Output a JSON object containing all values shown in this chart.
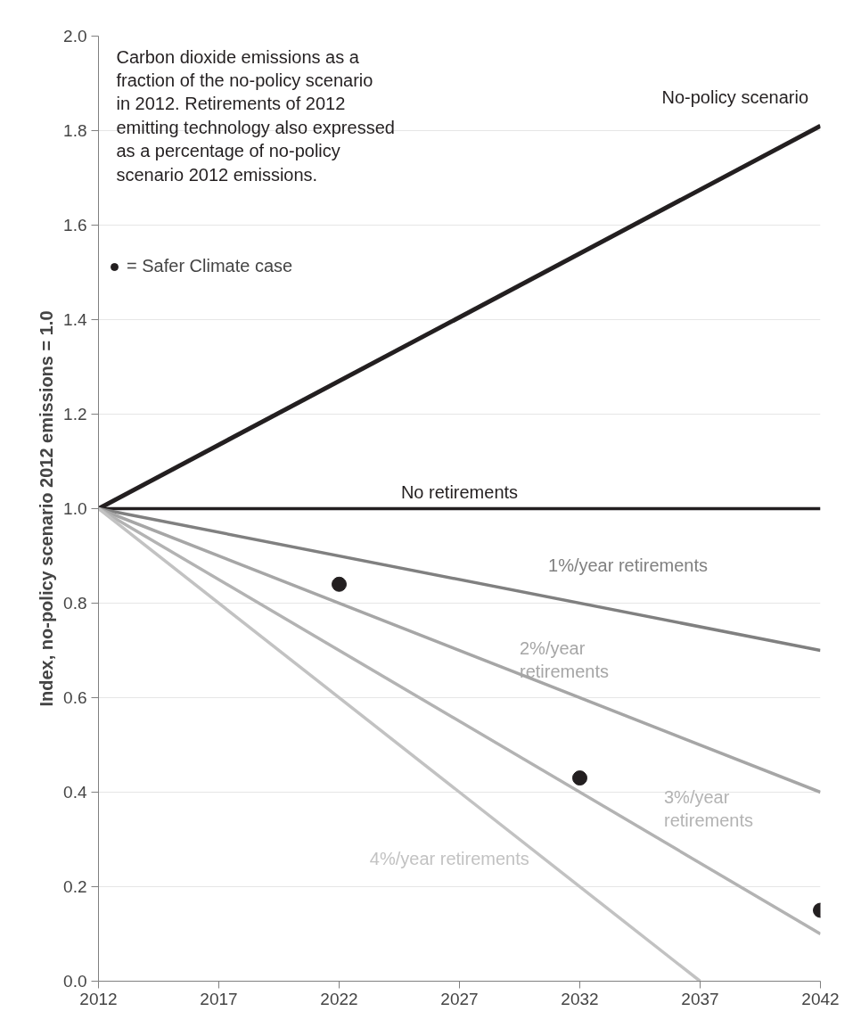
{
  "chart_data": {
    "type": "line",
    "ylabel": "Index, no-policy scenario 2012 emissions = 1.0",
    "annotations": [
      "Carbon dioxide emissions as a fraction of the no-policy scenario in 2012.  Retirements of 2012 emitting technology also expressed as a percentage of no-policy scenario 2012 emissions."
    ],
    "xlim": [
      2012,
      2042
    ],
    "xticks": [
      2012,
      2017,
      2022,
      2027,
      2032,
      2037,
      2042
    ],
    "ylim": [
      0,
      2.0
    ],
    "yticks": [
      {
        "value": 0,
        "label": "0.0"
      },
      {
        "value": 0.2,
        "label": "0.2"
      },
      {
        "value": 0.4,
        "label": "0.4"
      },
      {
        "value": 0.6,
        "label": "0.6"
      },
      {
        "value": 0.8,
        "label": "0.8"
      },
      {
        "value": 1.0,
        "label": "1.0"
      },
      {
        "value": 1.2,
        "label": "1.2"
      },
      {
        "value": 1.4,
        "label": "1.4"
      },
      {
        "value": 1.6,
        "label": "1.6"
      },
      {
        "value": 1.8,
        "label": "1.8"
      },
      {
        "value": 2.0,
        "label": "2.0"
      }
    ],
    "grid": "y",
    "legend": "top left",
    "marker": "none",
    "line_style": "solid",
    "series": [
      {
        "name": "No-policy scenario",
        "color": "#231f20",
        "x": [
          2012,
          2042
        ],
        "values": [
          1.0,
          1.81
        ]
      },
      {
        "name": "No retirements",
        "color": "#231f20",
        "x": [
          2012,
          2042
        ],
        "values": [
          1.0,
          1.0
        ]
      },
      {
        "name": "1%/year retirements",
        "color": "#808080",
        "x": [
          2012,
          2042
        ],
        "values": [
          1.0,
          0.7
        ]
      },
      {
        "name": "2%/year retirements",
        "color": "#a6a6a6",
        "x": [
          2012,
          2042
        ],
        "values": [
          1.0,
          0.4
        ]
      },
      {
        "name": "3%/year retirements",
        "color": "#b3b3b3",
        "x": [
          2012,
          2042
        ],
        "values": [
          1.0,
          0.1
        ]
      },
      {
        "name": "4%/year retirements",
        "color": "#c2c2c2",
        "x": [
          2012,
          2037
        ],
        "values": [
          1.0,
          0.0
        ]
      },
      {
        "name": "= Safer Climate case",
        "type": "scatter",
        "marker": "circle",
        "color": "#231f20",
        "x": [
          2022,
          2032,
          2042
        ],
        "values": [
          0.84,
          0.43,
          0.15
        ]
      }
    ]
  }
}
